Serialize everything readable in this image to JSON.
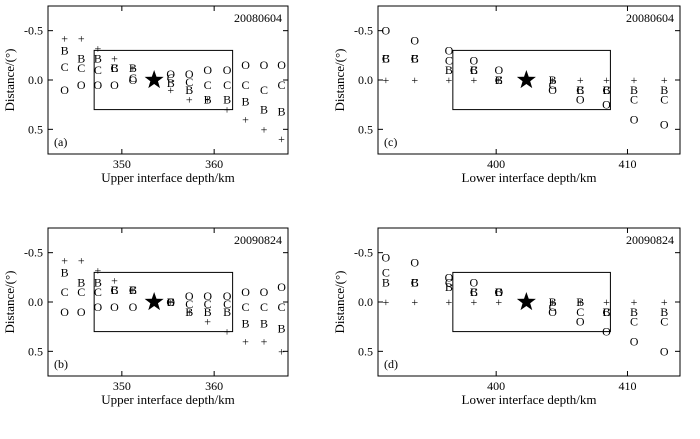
{
  "chart_data": [
    {
      "type": "scatter",
      "panel": "(a)",
      "title": "20080604",
      "xlabel": "Upper interface depth/km",
      "ylabel": "Distance/(°)",
      "xlim": [
        342,
        368
      ],
      "ylim": [
        -0.75,
        0.75
      ],
      "xticks": [
        350,
        360
      ],
      "yticks": [
        -0.5,
        0,
        0.5
      ],
      "xticklabels": [
        "350",
        "360"
      ],
      "yticklabels": [
        "-0.5",
        "0.0",
        "0.5"
      ],
      "window": {
        "x": [
          347,
          362
        ],
        "y": [
          -0.3,
          0.3
        ]
      },
      "star": {
        "x": 353.5,
        "y": 0.0
      },
      "markers": [
        {
          "s": "+",
          "x": 343.8,
          "y": -0.42
        },
        {
          "s": "B",
          "x": 343.8,
          "y": -0.3
        },
        {
          "s": "C",
          "x": 343.8,
          "y": -0.13
        },
        {
          "s": "O",
          "x": 343.8,
          "y": 0.1
        },
        {
          "s": "+",
          "x": 345.6,
          "y": -0.42
        },
        {
          "s": "B",
          "x": 345.6,
          "y": -0.22
        },
        {
          "s": "C",
          "x": 345.6,
          "y": -0.12
        },
        {
          "s": "O",
          "x": 345.6,
          "y": 0.05
        },
        {
          "s": "+",
          "x": 347.4,
          "y": -0.32
        },
        {
          "s": "B",
          "x": 347.4,
          "y": -0.22
        },
        {
          "s": "C",
          "x": 347.4,
          "y": -0.1
        },
        {
          "s": "O",
          "x": 347.4,
          "y": 0.05
        },
        {
          "s": "+",
          "x": 349.2,
          "y": -0.22
        },
        {
          "s": "B",
          "x": 349.2,
          "y": -0.12
        },
        {
          "s": "C",
          "x": 349.2,
          "y": -0.12
        },
        {
          "s": "O",
          "x": 349.2,
          "y": 0.05
        },
        {
          "s": "+",
          "x": 351.2,
          "y": -0.12
        },
        {
          "s": "B",
          "x": 351.2,
          "y": -0.12
        },
        {
          "s": "C",
          "x": 351.2,
          "y": -0.02
        },
        {
          "s": "O",
          "x": 351.2,
          "y": 0.0
        },
        {
          "s": "O",
          "x": 355.3,
          "y": -0.06
        },
        {
          "s": "C",
          "x": 355.3,
          "y": -0.02
        },
        {
          "s": "B",
          "x": 355.3,
          "y": 0.03
        },
        {
          "s": "+",
          "x": 355.3,
          "y": 0.1
        },
        {
          "s": "O",
          "x": 357.3,
          "y": -0.06
        },
        {
          "s": "C",
          "x": 357.3,
          "y": 0.02
        },
        {
          "s": "B",
          "x": 357.3,
          "y": 0.1
        },
        {
          "s": "+",
          "x": 357.3,
          "y": 0.2
        },
        {
          "s": "O",
          "x": 359.3,
          "y": -0.1
        },
        {
          "s": "C",
          "x": 359.3,
          "y": 0.05
        },
        {
          "s": "B",
          "x": 359.3,
          "y": 0.2
        },
        {
          "s": "+",
          "x": 359.3,
          "y": 0.2
        },
        {
          "s": "O",
          "x": 361.4,
          "y": -0.1
        },
        {
          "s": "C",
          "x": 361.4,
          "y": 0.05
        },
        {
          "s": "B",
          "x": 361.4,
          "y": 0.2
        },
        {
          "s": "+",
          "x": 361.4,
          "y": 0.3
        },
        {
          "s": "O",
          "x": 363.4,
          "y": -0.15
        },
        {
          "s": "C",
          "x": 363.4,
          "y": 0.05
        },
        {
          "s": "B",
          "x": 363.4,
          "y": 0.22
        },
        {
          "s": "+",
          "x": 363.4,
          "y": 0.4
        },
        {
          "s": "O",
          "x": 365.4,
          "y": -0.15
        },
        {
          "s": "C",
          "x": 365.4,
          "y": 0.1
        },
        {
          "s": "B",
          "x": 365.4,
          "y": 0.3
        },
        {
          "s": "+",
          "x": 365.4,
          "y": 0.5
        },
        {
          "s": "O",
          "x": 367.3,
          "y": -0.15
        },
        {
          "s": "C",
          "x": 367.3,
          "y": 0.05
        },
        {
          "s": "B",
          "x": 367.3,
          "y": 0.32
        },
        {
          "s": "+",
          "x": 367.3,
          "y": 0.6
        }
      ]
    },
    {
      "type": "scatter",
      "panel": "(c)",
      "title": "20080604",
      "xlabel": "Lower interface depth/km",
      "ylabel": "Distance/(°)",
      "xlim": [
        391,
        414
      ],
      "ylim": [
        -0.75,
        0.75
      ],
      "xticks": [
        400,
        410
      ],
      "yticks": [
        -0.5,
        0,
        0.5
      ],
      "xticklabels": [
        "400",
        "410"
      ],
      "yticklabels": [
        "-0.5",
        "0.0",
        "0.5"
      ],
      "window": {
        "x": [
          396.7,
          408.7
        ],
        "y": [
          -0.3,
          0.3
        ]
      },
      "star": {
        "x": 402.3,
        "y": 0.0
      },
      "markers": [
        {
          "s": "O",
          "x": 391.6,
          "y": -0.5
        },
        {
          "s": "C",
          "x": 391.6,
          "y": -0.22
        },
        {
          "s": "B",
          "x": 391.6,
          "y": -0.22
        },
        {
          "s": "+",
          "x": 391.6,
          "y": 0.0
        },
        {
          "s": "O",
          "x": 393.8,
          "y": -0.4
        },
        {
          "s": "C",
          "x": 393.8,
          "y": -0.22
        },
        {
          "s": "B",
          "x": 393.8,
          "y": -0.22
        },
        {
          "s": "+",
          "x": 393.8,
          "y": 0.0
        },
        {
          "s": "O",
          "x": 396.4,
          "y": -0.3
        },
        {
          "s": "C",
          "x": 396.4,
          "y": -0.2
        },
        {
          "s": "B",
          "x": 396.4,
          "y": -0.1
        },
        {
          "s": "+",
          "x": 396.4,
          "y": 0.0
        },
        {
          "s": "O",
          "x": 398.3,
          "y": -0.2
        },
        {
          "s": "C",
          "x": 398.3,
          "y": -0.1
        },
        {
          "s": "B",
          "x": 398.3,
          "y": -0.1
        },
        {
          "s": "+",
          "x": 398.3,
          "y": 0.0
        },
        {
          "s": "O",
          "x": 400.2,
          "y": -0.1
        },
        {
          "s": "C",
          "x": 400.2,
          "y": 0.0
        },
        {
          "s": "B",
          "x": 400.2,
          "y": 0.0
        },
        {
          "s": "+",
          "x": 400.2,
          "y": 0.0
        },
        {
          "s": "+",
          "x": 404.3,
          "y": 0.0
        },
        {
          "s": "B",
          "x": 404.3,
          "y": 0.0
        },
        {
          "s": "C",
          "x": 404.3,
          "y": 0.05
        },
        {
          "s": "O",
          "x": 404.3,
          "y": 0.1
        },
        {
          "s": "+",
          "x": 406.4,
          "y": 0.0
        },
        {
          "s": "B",
          "x": 406.4,
          "y": 0.1
        },
        {
          "s": "C",
          "x": 406.4,
          "y": 0.1
        },
        {
          "s": "O",
          "x": 406.4,
          "y": 0.2
        },
        {
          "s": "+",
          "x": 408.4,
          "y": 0.0
        },
        {
          "s": "B",
          "x": 408.4,
          "y": 0.1
        },
        {
          "s": "C",
          "x": 408.4,
          "y": 0.1
        },
        {
          "s": "O",
          "x": 408.4,
          "y": 0.25
        },
        {
          "s": "+",
          "x": 410.5,
          "y": 0.0
        },
        {
          "s": "B",
          "x": 410.5,
          "y": 0.1
        },
        {
          "s": "C",
          "x": 410.5,
          "y": 0.2
        },
        {
          "s": "O",
          "x": 410.5,
          "y": 0.4
        },
        {
          "s": "+",
          "x": 412.8,
          "y": 0.0
        },
        {
          "s": "B",
          "x": 412.8,
          "y": 0.1
        },
        {
          "s": "C",
          "x": 412.8,
          "y": 0.2
        },
        {
          "s": "O",
          "x": 412.8,
          "y": 0.45
        }
      ]
    },
    {
      "type": "scatter",
      "panel": "(b)",
      "title": "20090824",
      "xlabel": "Upper interface depth/km",
      "ylabel": "Distance/(°)",
      "xlim": [
        342,
        368
      ],
      "ylim": [
        -0.75,
        0.75
      ],
      "xticks": [
        350,
        360
      ],
      "yticks": [
        -0.5,
        0,
        0.5
      ],
      "xticklabels": [
        "350",
        "360"
      ],
      "yticklabels": [
        "-0.5",
        "0.0",
        "0.5"
      ],
      "window": {
        "x": [
          347,
          362
        ],
        "y": [
          -0.3,
          0.3
        ]
      },
      "star": {
        "x": 353.5,
        "y": 0.0
      },
      "markers": [
        {
          "s": "+",
          "x": 343.8,
          "y": -0.42
        },
        {
          "s": "B",
          "x": 343.8,
          "y": -0.3
        },
        {
          "s": "C",
          "x": 343.8,
          "y": -0.1
        },
        {
          "s": "O",
          "x": 343.8,
          "y": 0.1
        },
        {
          "s": "+",
          "x": 345.6,
          "y": -0.42
        },
        {
          "s": "B",
          "x": 345.6,
          "y": -0.2
        },
        {
          "s": "C",
          "x": 345.6,
          "y": -0.1
        },
        {
          "s": "O",
          "x": 345.6,
          "y": 0.1
        },
        {
          "s": "+",
          "x": 347.4,
          "y": -0.32
        },
        {
          "s": "B",
          "x": 347.4,
          "y": -0.2
        },
        {
          "s": "C",
          "x": 347.4,
          "y": -0.1
        },
        {
          "s": "O",
          "x": 347.4,
          "y": 0.05
        },
        {
          "s": "+",
          "x": 349.2,
          "y": -0.22
        },
        {
          "s": "B",
          "x": 349.2,
          "y": -0.12
        },
        {
          "s": "C",
          "x": 349.2,
          "y": -0.12
        },
        {
          "s": "O",
          "x": 349.2,
          "y": 0.05
        },
        {
          "s": "+",
          "x": 351.2,
          "y": -0.12
        },
        {
          "s": "B",
          "x": 351.2,
          "y": -0.12
        },
        {
          "s": "C",
          "x": 351.2,
          "y": -0.12
        },
        {
          "s": "O",
          "x": 351.2,
          "y": 0.05
        },
        {
          "s": "O",
          "x": 355.3,
          "y": 0.0
        },
        {
          "s": "C",
          "x": 355.3,
          "y": 0.0
        },
        {
          "s": "B",
          "x": 355.3,
          "y": 0.0
        },
        {
          "s": "+",
          "x": 355.3,
          "y": 0.0
        },
        {
          "s": "O",
          "x": 357.3,
          "y": -0.06
        },
        {
          "s": "C",
          "x": 357.3,
          "y": 0.02
        },
        {
          "s": "B",
          "x": 357.3,
          "y": 0.1
        },
        {
          "s": "+",
          "x": 357.3,
          "y": 0.1
        },
        {
          "s": "O",
          "x": 359.3,
          "y": -0.06
        },
        {
          "s": "C",
          "x": 359.3,
          "y": 0.02
        },
        {
          "s": "B",
          "x": 359.3,
          "y": 0.1
        },
        {
          "s": "+",
          "x": 359.3,
          "y": 0.2
        },
        {
          "s": "O",
          "x": 361.4,
          "y": -0.06
        },
        {
          "s": "C",
          "x": 361.4,
          "y": 0.02
        },
        {
          "s": "B",
          "x": 361.4,
          "y": 0.1
        },
        {
          "s": "+",
          "x": 361.4,
          "y": 0.3
        },
        {
          "s": "O",
          "x": 363.4,
          "y": -0.1
        },
        {
          "s": "C",
          "x": 363.4,
          "y": 0.05
        },
        {
          "s": "B",
          "x": 363.4,
          "y": 0.22
        },
        {
          "s": "+",
          "x": 363.4,
          "y": 0.4
        },
        {
          "s": "O",
          "x": 365.4,
          "y": -0.1
        },
        {
          "s": "C",
          "x": 365.4,
          "y": 0.05
        },
        {
          "s": "B",
          "x": 365.4,
          "y": 0.22
        },
        {
          "s": "+",
          "x": 365.4,
          "y": 0.4
        },
        {
          "s": "O",
          "x": 367.3,
          "y": -0.15
        },
        {
          "s": "C",
          "x": 367.3,
          "y": 0.05
        },
        {
          "s": "B",
          "x": 367.3,
          "y": 0.27
        },
        {
          "s": "+",
          "x": 367.3,
          "y": 0.5
        }
      ]
    },
    {
      "type": "scatter",
      "panel": "(d)",
      "title": "20090824",
      "xlabel": "Lower interface depth/km",
      "ylabel": "Distance/(°)",
      "xlim": [
        391,
        414
      ],
      "ylim": [
        -0.75,
        0.75
      ],
      "xticks": [
        400,
        410
      ],
      "yticks": [
        -0.5,
        0,
        0.5
      ],
      "xticklabels": [
        "400",
        "410"
      ],
      "yticklabels": [
        "-0.5",
        "0.0",
        "0.5"
      ],
      "window": {
        "x": [
          396.7,
          408.7
        ],
        "y": [
          -0.3,
          0.3
        ]
      },
      "star": {
        "x": 402.3,
        "y": 0.0
      },
      "markers": [
        {
          "s": "O",
          "x": 391.6,
          "y": -0.45
        },
        {
          "s": "C",
          "x": 391.6,
          "y": -0.3
        },
        {
          "s": "B",
          "x": 391.6,
          "y": -0.2
        },
        {
          "s": "+",
          "x": 391.6,
          "y": 0.0
        },
        {
          "s": "O",
          "x": 393.8,
          "y": -0.4
        },
        {
          "s": "C",
          "x": 393.8,
          "y": -0.2
        },
        {
          "s": "B",
          "x": 393.8,
          "y": -0.2
        },
        {
          "s": "+",
          "x": 393.8,
          "y": 0.0
        },
        {
          "s": "O",
          "x": 396.4,
          "y": -0.25
        },
        {
          "s": "C",
          "x": 396.4,
          "y": -0.2
        },
        {
          "s": "B",
          "x": 396.4,
          "y": -0.15
        },
        {
          "s": "+",
          "x": 396.4,
          "y": 0.0
        },
        {
          "s": "O",
          "x": 398.3,
          "y": -0.2
        },
        {
          "s": "C",
          "x": 398.3,
          "y": -0.1
        },
        {
          "s": "B",
          "x": 398.3,
          "y": -0.1
        },
        {
          "s": "+",
          "x": 398.3,
          "y": 0.0
        },
        {
          "s": "O",
          "x": 400.2,
          "y": -0.1
        },
        {
          "s": "C",
          "x": 400.2,
          "y": -0.1
        },
        {
          "s": "B",
          "x": 400.2,
          "y": -0.1
        },
        {
          "s": "+",
          "x": 400.2,
          "y": 0.0
        },
        {
          "s": "+",
          "x": 404.3,
          "y": 0.0
        },
        {
          "s": "B",
          "x": 404.3,
          "y": 0.0
        },
        {
          "s": "C",
          "x": 404.3,
          "y": 0.05
        },
        {
          "s": "O",
          "x": 404.3,
          "y": 0.1
        },
        {
          "s": "+",
          "x": 406.4,
          "y": 0.0
        },
        {
          "s": "B",
          "x": 406.4,
          "y": 0.0
        },
        {
          "s": "C",
          "x": 406.4,
          "y": 0.1
        },
        {
          "s": "O",
          "x": 406.4,
          "y": 0.2
        },
        {
          "s": "+",
          "x": 408.4,
          "y": 0.0
        },
        {
          "s": "B",
          "x": 408.4,
          "y": 0.1
        },
        {
          "s": "C",
          "x": 408.4,
          "y": 0.1
        },
        {
          "s": "O",
          "x": 408.4,
          "y": 0.3
        },
        {
          "s": "+",
          "x": 410.5,
          "y": 0.0
        },
        {
          "s": "B",
          "x": 410.5,
          "y": 0.1
        },
        {
          "s": "C",
          "x": 410.5,
          "y": 0.2
        },
        {
          "s": "O",
          "x": 410.5,
          "y": 0.4
        },
        {
          "s": "+",
          "x": 412.8,
          "y": 0.0
        },
        {
          "s": "B",
          "x": 412.8,
          "y": 0.1
        },
        {
          "s": "C",
          "x": 412.8,
          "y": 0.2
        },
        {
          "s": "O",
          "x": 412.8,
          "y": 0.5
        }
      ]
    }
  ]
}
